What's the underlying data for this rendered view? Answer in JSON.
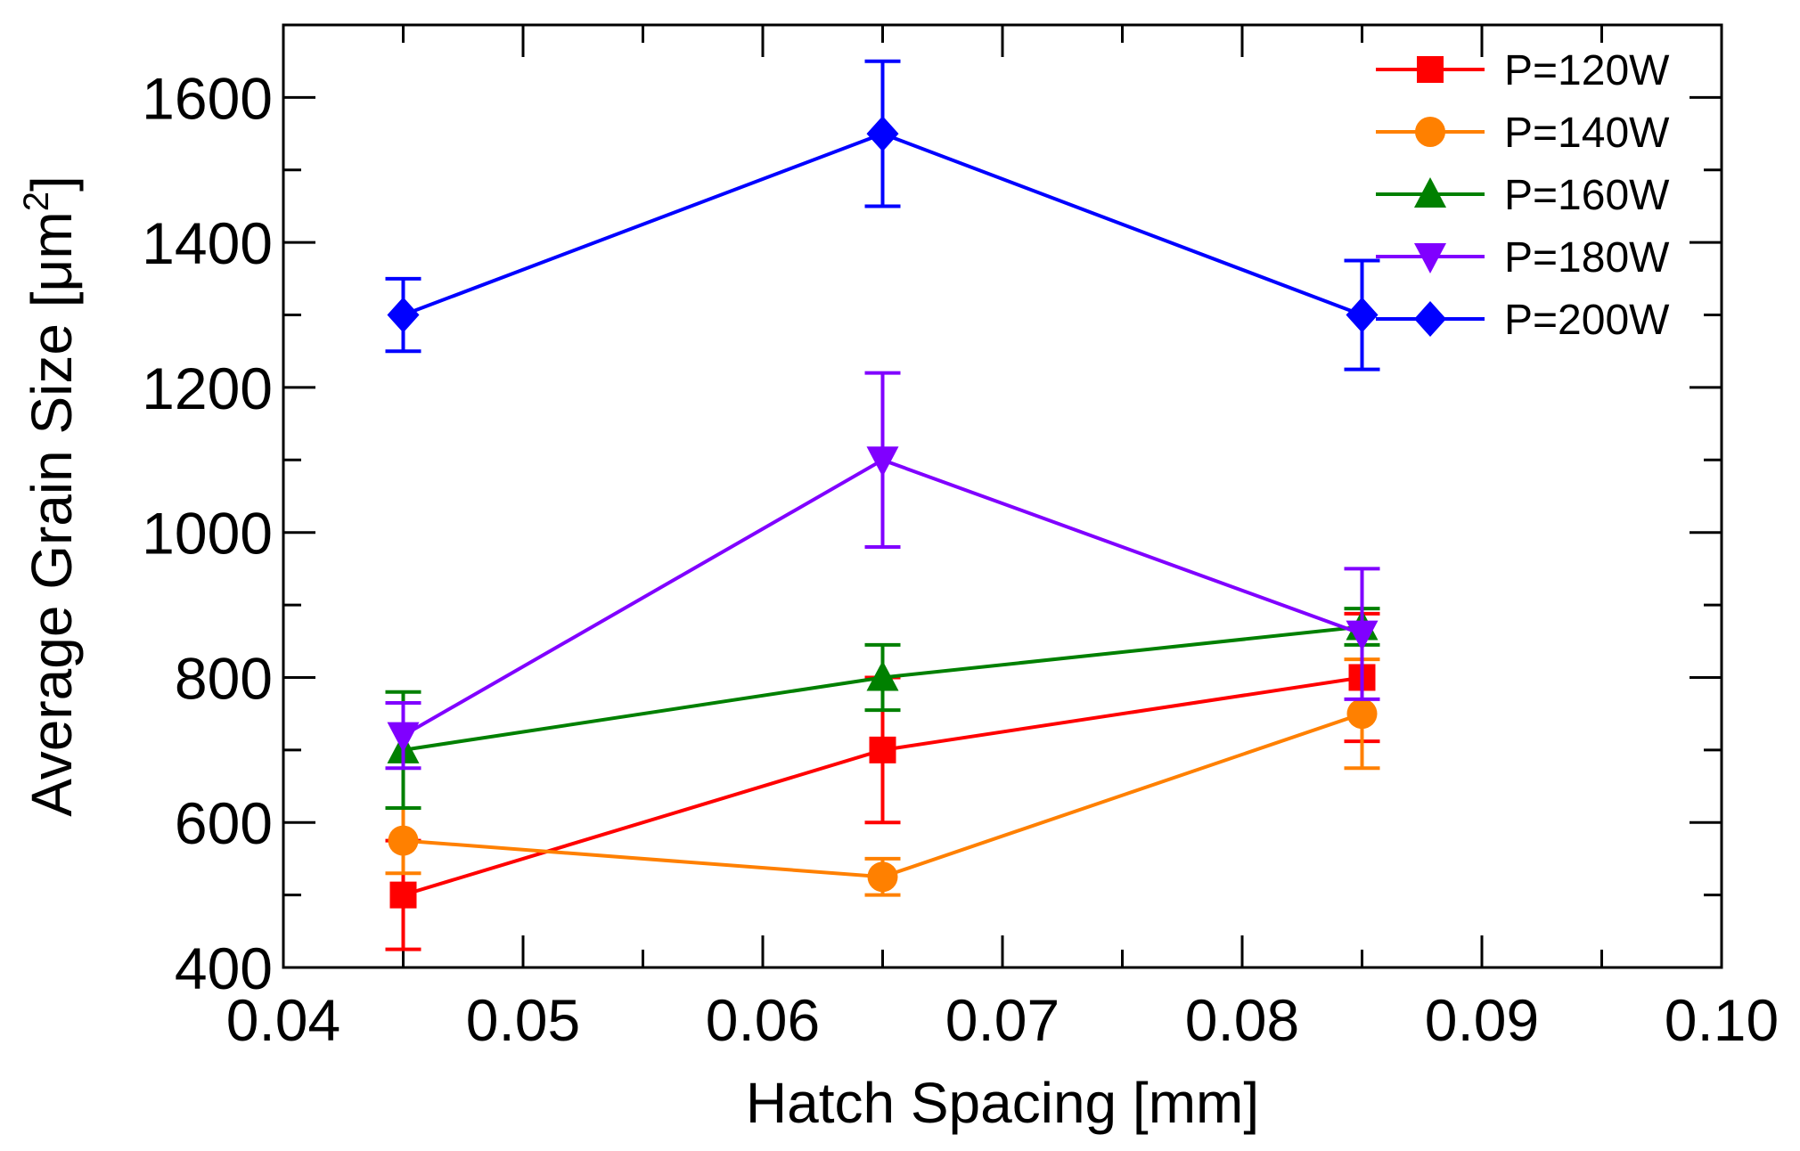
{
  "chart_data": {
    "type": "line",
    "title": "",
    "xlabel": "Hatch Spacing [mm]",
    "ylabel": "Average Grain Size [μm",
    "ylabel_superscript": "2",
    "ylabel_suffix": "]",
    "xlim": [
      0.04,
      0.1
    ],
    "ylim": [
      400,
      1700
    ],
    "xticks": [
      0.04,
      0.05,
      0.06,
      0.07,
      0.08,
      0.09,
      0.1
    ],
    "xtick_labels": [
      "0.04",
      "0.05",
      "0.06",
      "0.07",
      "0.08",
      "0.09",
      "0.10"
    ],
    "yticks": [
      400,
      600,
      800,
      1000,
      1200,
      1400,
      1600
    ],
    "ytick_labels": [
      "400",
      "600",
      "800",
      "1000",
      "1200",
      "1400",
      "1600"
    ],
    "legend_position": "top-right",
    "x": [
      0.045,
      0.065,
      0.085
    ],
    "series": [
      {
        "name": "P=120W",
        "color": "#ff0000",
        "marker": "square",
        "values": [
          500,
          700,
          800
        ],
        "err_low": [
          425,
          600,
          712
        ],
        "err_high": [
          575,
          800,
          888
        ]
      },
      {
        "name": "P=140W",
        "color": "#ff8000",
        "marker": "circle",
        "values": [
          575,
          525,
          750
        ],
        "err_low": [
          530,
          500,
          675
        ],
        "err_high": [
          620,
          550,
          825
        ]
      },
      {
        "name": "P=160W",
        "color": "#008000",
        "marker": "triangle-up",
        "values": [
          700,
          800,
          870
        ],
        "err_low": [
          620,
          755,
          845
        ],
        "err_high": [
          780,
          845,
          895
        ]
      },
      {
        "name": "P=180W",
        "color": "#8000ff",
        "marker": "triangle-down",
        "values": [
          720,
          1100,
          860
        ],
        "err_low": [
          675,
          980,
          770
        ],
        "err_high": [
          765,
          1220,
          950
        ]
      },
      {
        "name": "P=200W",
        "color": "#0000ff",
        "marker": "diamond",
        "values": [
          1300,
          1550,
          1300
        ],
        "err_low": [
          1250,
          1450,
          1225
        ],
        "err_high": [
          1350,
          1650,
          1375
        ]
      }
    ]
  }
}
